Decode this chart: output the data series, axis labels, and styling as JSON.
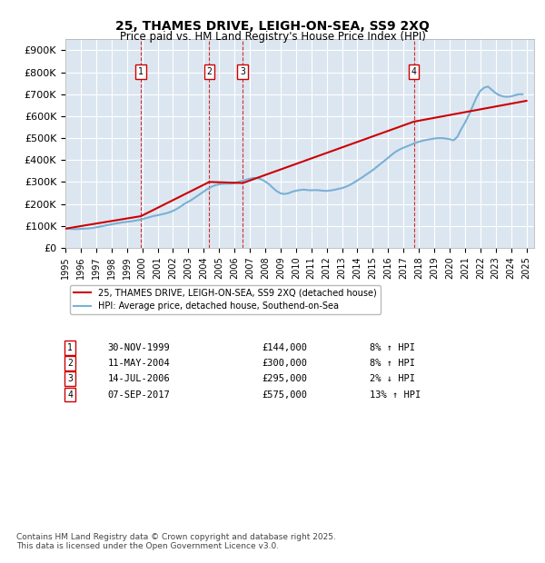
{
  "title_line1": "25, THAMES DRIVE, LEIGH-ON-SEA, SS9 2XQ",
  "title_line2": "Price paid vs. HM Land Registry's House Price Index (HPI)",
  "ylabel": "",
  "background_color": "#dce6f1",
  "plot_bg_color": "#dce6f1",
  "ylim": [
    0,
    950000
  ],
  "yticks": [
    0,
    100000,
    200000,
    300000,
    400000,
    500000,
    600000,
    700000,
    800000,
    900000
  ],
  "ytick_labels": [
    "£0",
    "£100K",
    "£200K",
    "£300K",
    "£400K",
    "£500K",
    "£600K",
    "£700K",
    "£800K",
    "£900K"
  ],
  "xmin": 1995.0,
  "xmax": 2025.5,
  "sale_dates": [
    1999.917,
    2004.367,
    2006.542,
    2017.675
  ],
  "sale_prices": [
    144000,
    300000,
    295000,
    575000
  ],
  "sale_labels": [
    "1",
    "2",
    "3",
    "4"
  ],
  "legend_line1": "25, THAMES DRIVE, LEIGH-ON-SEA, SS9 2XQ (detached house)",
  "legend_line2": "HPI: Average price, detached house, Southend-on-Sea",
  "transactions": [
    {
      "label": "1",
      "date": "30-NOV-1999",
      "price": "£144,000",
      "hpi": "8% ↑ HPI"
    },
    {
      "label": "2",
      "date": "11-MAY-2004",
      "price": "£300,000",
      "hpi": "8% ↑ HPI"
    },
    {
      "label": "3",
      "date": "14-JUL-2006",
      "price": "£295,000",
      "hpi": "2% ↓ HPI"
    },
    {
      "label": "4",
      "date": "07-SEP-2017",
      "price": "£575,000",
      "hpi": "13% ↑ HPI"
    }
  ],
  "footnote": "Contains HM Land Registry data © Crown copyright and database right 2025.\nThis data is licensed under the Open Government Licence v3.0.",
  "hpi_line_color": "#7ab0d4",
  "sale_line_color": "#cc0000",
  "vline_color": "#cc0000",
  "grid_color": "#ffffff",
  "hpi_data": {
    "years": [
      1995.0,
      1995.25,
      1995.5,
      1995.75,
      1996.0,
      1996.25,
      1996.5,
      1996.75,
      1997.0,
      1997.25,
      1997.5,
      1997.75,
      1998.0,
      1998.25,
      1998.5,
      1998.75,
      1999.0,
      1999.25,
      1999.5,
      1999.75,
      2000.0,
      2000.25,
      2000.5,
      2000.75,
      2001.0,
      2001.25,
      2001.5,
      2001.75,
      2002.0,
      2002.25,
      2002.5,
      2002.75,
      2003.0,
      2003.25,
      2003.5,
      2003.75,
      2004.0,
      2004.25,
      2004.5,
      2004.75,
      2005.0,
      2005.25,
      2005.5,
      2005.75,
      2006.0,
      2006.25,
      2006.5,
      2006.75,
      2007.0,
      2007.25,
      2007.5,
      2007.75,
      2008.0,
      2008.25,
      2008.5,
      2008.75,
      2009.0,
      2009.25,
      2009.5,
      2009.75,
      2010.0,
      2010.25,
      2010.5,
      2010.75,
      2011.0,
      2011.25,
      2011.5,
      2011.75,
      2012.0,
      2012.25,
      2012.5,
      2012.75,
      2013.0,
      2013.25,
      2013.5,
      2013.75,
      2014.0,
      2014.25,
      2014.5,
      2014.75,
      2015.0,
      2015.25,
      2015.5,
      2015.75,
      2016.0,
      2016.25,
      2016.5,
      2016.75,
      2017.0,
      2017.25,
      2017.5,
      2017.75,
      2018.0,
      2018.25,
      2018.5,
      2018.75,
      2019.0,
      2019.25,
      2019.5,
      2019.75,
      2020.0,
      2020.25,
      2020.5,
      2020.75,
      2021.0,
      2021.25,
      2021.5,
      2021.75,
      2022.0,
      2022.25,
      2022.5,
      2022.75,
      2023.0,
      2023.25,
      2023.5,
      2023.75,
      2024.0,
      2024.25,
      2024.5,
      2024.75
    ],
    "values": [
      87000,
      86000,
      85000,
      85000,
      86000,
      87000,
      88000,
      90000,
      93000,
      96000,
      100000,
      103000,
      107000,
      110000,
      113000,
      116000,
      118000,
      120000,
      123000,
      126000,
      130000,
      135000,
      140000,
      145000,
      148000,
      152000,
      156000,
      161000,
      168000,
      177000,
      188000,
      200000,
      210000,
      220000,
      232000,
      244000,
      256000,
      268000,
      278000,
      285000,
      289000,
      291000,
      292000,
      292000,
      295000,
      300000,
      305000,
      310000,
      315000,
      318000,
      318000,
      312000,
      302000,
      290000,
      273000,
      258000,
      248000,
      245000,
      248000,
      255000,
      260000,
      263000,
      265000,
      263000,
      262000,
      263000,
      262000,
      260000,
      259000,
      261000,
      264000,
      268000,
      272000,
      278000,
      286000,
      296000,
      307000,
      318000,
      330000,
      342000,
      354000,
      368000,
      382000,
      396000,
      410000,
      425000,
      438000,
      448000,
      456000,
      463000,
      470000,
      478000,
      483000,
      488000,
      492000,
      495000,
      498000,
      500000,
      500000,
      498000,
      495000,
      490000,
      505000,
      540000,
      570000,
      605000,
      645000,
      685000,
      715000,
      730000,
      735000,
      720000,
      705000,
      695000,
      690000,
      688000,
      690000,
      695000,
      700000,
      700000
    ]
  },
  "sold_line_data": {
    "years": [
      1995.0,
      1999.917,
      2004.367,
      2006.542,
      2017.675,
      2025.0
    ],
    "values": [
      87000,
      144000,
      300000,
      295000,
      575000,
      670000
    ]
  }
}
